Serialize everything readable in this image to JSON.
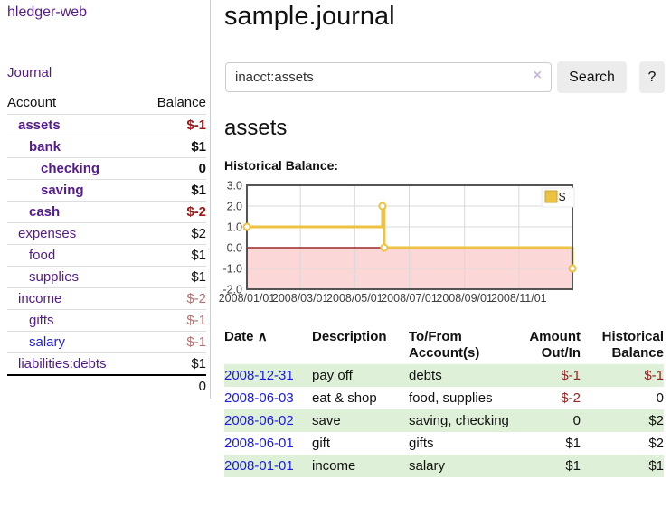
{
  "sidebar": {
    "app_title": "hledger-web",
    "journal_link": "Journal",
    "table": {
      "account_header": "Account",
      "balance_header": "Balance"
    },
    "accounts": [
      {
        "name": "assets",
        "balance": "$-1",
        "depth": 1,
        "bold": true,
        "neg": "strong"
      },
      {
        "name": "bank",
        "balance": "$1",
        "depth": 2,
        "bold": true
      },
      {
        "name": "checking",
        "balance": "0",
        "depth": 3,
        "bold": true
      },
      {
        "name": "saving",
        "balance": "$1",
        "depth": 3,
        "bold": true
      },
      {
        "name": "cash",
        "balance": "$-2",
        "depth": 2,
        "bold": true,
        "neg": "strong"
      },
      {
        "name": "expenses",
        "balance": "$2",
        "depth": 1
      },
      {
        "name": "food",
        "balance": "$1",
        "depth": 2
      },
      {
        "name": "supplies",
        "balance": "$1",
        "depth": 2
      },
      {
        "name": "income",
        "balance": "$-2",
        "depth": 1,
        "neg": "muted"
      },
      {
        "name": "gifts",
        "balance": "$-1",
        "depth": 2,
        "neg": "muted"
      },
      {
        "name": "salary",
        "balance": "$-1",
        "depth": 2,
        "neg": "muted",
        "blue": true
      },
      {
        "name": "liabilities:debts",
        "balance": "$1",
        "depth": 1
      }
    ],
    "total": "0"
  },
  "main": {
    "title": "sample.journal",
    "account_heading": "assets",
    "chart_title": "Historical Balance:"
  },
  "search": {
    "value": "inacct:assets",
    "clear_icon": "×",
    "button_label": "Search",
    "help_label": "?"
  },
  "chart_data": {
    "type": "line",
    "step": true,
    "title": "Historical Balance:",
    "series": [
      {
        "name": "$",
        "color": "#edc240",
        "points": [
          {
            "date": "2008-01-01",
            "value": 1
          },
          {
            "date": "2008-06-01",
            "value": 2
          },
          {
            "date": "2008-06-03",
            "value": 0
          },
          {
            "date": "2008-12-31",
            "value": -1
          }
        ]
      }
    ],
    "ylim": [
      -2,
      3
    ],
    "yticks": [
      "3.0",
      "2.0",
      "1.0",
      "0.0",
      "-1.0",
      "-2.0"
    ],
    "xticks": [
      {
        "label": "2008/01/01",
        "date": "2008-01-01"
      },
      {
        "label": "2008/03/01",
        "date": "2008-03-01"
      },
      {
        "label": "2008/05/01",
        "date": "2008-05-01"
      },
      {
        "label": "2008/07/01",
        "date": "2008-07-01"
      },
      {
        "label": "2008/09/01",
        "date": "2008-09-01"
      },
      {
        "label": "2008/11/01",
        "date": "2008-11-01"
      }
    ],
    "xrange": [
      "2008-01-01",
      "2008-12-31"
    ],
    "legend": "$",
    "legend_position": "top-right",
    "grid": true,
    "negative_region_color": "#fbd7d7",
    "zero_line_color": "#8b0000",
    "grid_color": "#d9d9d9",
    "border_color": "#545454"
  },
  "register": {
    "headers": [
      "Date",
      "Description",
      "To/From Account(s)",
      "Amount Out/In",
      "Historical Balance"
    ],
    "sort_icon": "∧",
    "rows": [
      {
        "date": "2008-12-31",
        "description": "pay off",
        "accounts": "debts",
        "amount": "$-1",
        "balance": "$-1",
        "amount_neg": true,
        "balance_neg": true
      },
      {
        "date": "2008-06-03",
        "description": "eat & shop",
        "accounts": "food, supplies",
        "amount": "$-2",
        "balance": "0",
        "amount_neg": true
      },
      {
        "date": "2008-06-02",
        "description": "save",
        "accounts": "saving, checking",
        "amount": "0",
        "balance": "$2"
      },
      {
        "date": "2008-06-01",
        "description": "gift",
        "accounts": "gifts",
        "amount": "$1",
        "balance": "$2"
      },
      {
        "date": "2008-01-01",
        "description": "income",
        "accounts": "salary",
        "amount": "$1",
        "balance": "$1"
      }
    ]
  },
  "colors": {
    "link_purple": "#551a8b",
    "link_blue": "#1a1ae6",
    "negative_strong": "#9e1616",
    "negative_muted": "#b4716f",
    "negative_table": "#992222",
    "row_stripe_green": "#dff0d8",
    "chart_line_gold": "#edc240",
    "chart_negative_pink": "#fbd7d7",
    "zero_line_red": "#8b0000",
    "button_gray": "#ececec"
  }
}
